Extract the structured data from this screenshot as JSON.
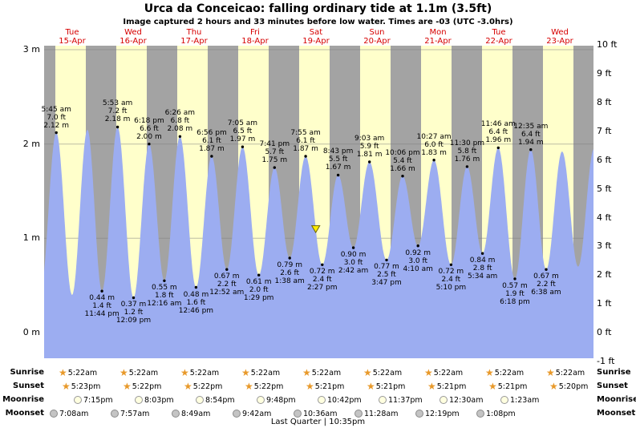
{
  "header": {
    "title": "Urca da Conceicao: falling ordinary tide at 1.1m (3.5ft)",
    "subtitle": "Image captured 2 hours and 33 minutes before low water. Times are -03 (UTC -3.0hrs)"
  },
  "chart_data": {
    "type": "area",
    "title": "Urca da Conceicao tide curve",
    "x_unit": "hours from Tue 15-Apr 00:00",
    "y_unit": "meters",
    "ylim_m": [
      -0.27,
      3.04
    ],
    "grid": "horizontal meter lines",
    "colors": {
      "daylight": "#ffffcb",
      "night": "#a3a3a3",
      "tide": "#9cadf1",
      "day_label": "#d60000",
      "marker": "#ffec00"
    },
    "sunrise_hour": 5.37,
    "sunset_hour": 17.37,
    "days": [
      {
        "dow": "Tue",
        "date": "15-Apr"
      },
      {
        "dow": "Wed",
        "date": "16-Apr"
      },
      {
        "dow": "Thu",
        "date": "17-Apr"
      },
      {
        "dow": "Fri",
        "date": "18-Apr"
      },
      {
        "dow": "Sat",
        "date": "19-Apr"
      },
      {
        "dow": "Sun",
        "date": "20-Apr"
      },
      {
        "dow": "Mon",
        "date": "21-Apr"
      },
      {
        "dow": "Tue",
        "date": "22-Apr"
      },
      {
        "dow": "Wed",
        "date": "23-Apr"
      }
    ],
    "y_left_ticks": [
      {
        "label": "3 m",
        "m": 3
      },
      {
        "label": "2 m",
        "m": 2
      },
      {
        "label": "1 m",
        "m": 1
      },
      {
        "label": "0 m",
        "m": 0
      }
    ],
    "y_right_ticks": [
      {
        "label": "10 ft",
        "ft": 10
      },
      {
        "label": "9 ft",
        "ft": 9
      },
      {
        "label": "8 ft",
        "ft": 8
      },
      {
        "label": "7 ft",
        "ft": 7
      },
      {
        "label": "6 ft",
        "ft": 6
      },
      {
        "label": "5 ft",
        "ft": 5
      },
      {
        "label": "4 ft",
        "ft": 4
      },
      {
        "label": "3 ft",
        "ft": 3
      },
      {
        "label": "2 ft",
        "ft": 2
      },
      {
        "label": "1 ft",
        "ft": 1
      },
      {
        "label": "0 ft",
        "ft": 0
      },
      {
        "label": "-1 ft",
        "ft": -1
      }
    ],
    "events": [
      {
        "t": -0.55,
        "h": 0.42,
        "type": "low"
      },
      {
        "t": 5.75,
        "h": 2.12,
        "type": "high",
        "lines": [
          "5:45 am",
          "7.0 ft",
          "2.12 m"
        ]
      },
      {
        "t": 11.95,
        "h": 0.4,
        "type": "low"
      },
      {
        "t": 18.0,
        "h": 2.15,
        "type": "high"
      },
      {
        "t": 23.73,
        "h": 0.44,
        "type": "low",
        "lines": [
          "0.44 m",
          "1.4 ft",
          "11:44 pm"
        ]
      },
      {
        "t": 29.88,
        "h": 2.18,
        "type": "high",
        "lines": [
          "5:53 am",
          "7.2 ft",
          "2.18 m"
        ]
      },
      {
        "t": 36.15,
        "h": 0.37,
        "type": "low",
        "lines": [
          "0.37 m",
          "1.2 ft",
          "12:09 pm"
        ]
      },
      {
        "t": 42.3,
        "h": 2.0,
        "type": "high",
        "lines": [
          "6:18 pm",
          "6.6 ft",
          "2.00 m"
        ]
      },
      {
        "t": 48.27,
        "h": 0.55,
        "type": "low",
        "lines": [
          "0.55 m",
          "1.8 ft",
          "12:16 am"
        ]
      },
      {
        "t": 54.43,
        "h": 2.08,
        "type": "high",
        "lines": [
          "6:26 am",
          "6.8 ft",
          "2.08 m"
        ]
      },
      {
        "t": 60.77,
        "h": 0.48,
        "type": "low",
        "lines": [
          "0.48 m",
          "1.6 ft",
          "12:46 pm"
        ]
      },
      {
        "t": 66.93,
        "h": 1.87,
        "type": "high",
        "lines": [
          "6:56 pm",
          "6.1 ft",
          "1.87 m"
        ]
      },
      {
        "t": 72.87,
        "h": 0.67,
        "type": "low",
        "lines": [
          "0.67 m",
          "2.2 ft",
          "12:52 am"
        ]
      },
      {
        "t": 79.08,
        "h": 1.97,
        "type": "high",
        "lines": [
          "7:05 am",
          "6.5 ft",
          "1.97 m"
        ]
      },
      {
        "t": 85.48,
        "h": 0.61,
        "type": "low",
        "lines": [
          "0.61 m",
          "2.0 ft",
          "1:29 pm"
        ]
      },
      {
        "t": 91.68,
        "h": 1.75,
        "type": "high",
        "lines": [
          "7:41 pm",
          "5.7 ft",
          "1.75 m"
        ]
      },
      {
        "t": 97.63,
        "h": 0.79,
        "type": "low",
        "lines": [
          "0.79 m",
          "2.6 ft",
          "1:38 am"
        ]
      },
      {
        "t": 103.92,
        "h": 1.87,
        "type": "high",
        "lines": [
          "7:55 am",
          "6.1 ft",
          "1.87 m"
        ]
      },
      {
        "t": 110.45,
        "h": 0.72,
        "type": "low",
        "lines": [
          "0.72 m",
          "2.4 ft",
          "2:27 pm"
        ]
      },
      {
        "t": 116.72,
        "h": 1.67,
        "type": "high",
        "lines": [
          "8:43 pm",
          "5.5 ft",
          "1.67 m"
        ]
      },
      {
        "t": 122.7,
        "h": 0.9,
        "type": "low",
        "lines": [
          "0.90 m",
          "3.0 ft",
          "2:42 am"
        ]
      },
      {
        "t": 129.05,
        "h": 1.81,
        "type": "high",
        "lines": [
          "9:03 am",
          "5.9 ft",
          "1.81 m"
        ]
      },
      {
        "t": 135.78,
        "h": 0.77,
        "type": "low",
        "lines": [
          "0.77 m",
          "2.5 ft",
          "3:47 pm"
        ]
      },
      {
        "t": 142.1,
        "h": 1.66,
        "type": "high",
        "lines": [
          "10:06 pm",
          "5.4 ft",
          "1.66 m"
        ]
      },
      {
        "t": 148.17,
        "h": 0.92,
        "type": "low",
        "lines": [
          "0.92 m",
          "3.0 ft",
          "4:10 am"
        ]
      },
      {
        "t": 154.45,
        "h": 1.83,
        "type": "high",
        "lines": [
          "10:27 am",
          "6.0 ft",
          "1.83 m"
        ]
      },
      {
        "t": 161.17,
        "h": 0.72,
        "type": "low",
        "lines": [
          "0.72 m",
          "2.4 ft",
          "5:10 pm"
        ]
      },
      {
        "t": 167.5,
        "h": 1.76,
        "type": "high",
        "lines": [
          "11:30 pm",
          "5.8 ft",
          "1.76 m"
        ]
      },
      {
        "t": 173.57,
        "h": 0.84,
        "type": "low",
        "lines": [
          "0.84 m",
          "2.8 ft",
          "5:34 am"
        ]
      },
      {
        "t": 179.77,
        "h": 1.96,
        "type": "high",
        "lines": [
          "11:46 am",
          "6.4 ft",
          "1.96 m"
        ]
      },
      {
        "t": 186.3,
        "h": 0.57,
        "type": "low",
        "lines": [
          "0.57 m",
          "1.9 ft",
          "6:18 pm"
        ]
      },
      {
        "t": 192.58,
        "h": 1.94,
        "type": "high",
        "lines": [
          "12:35 am",
          "6.4 ft",
          "1.94 m"
        ]
      },
      {
        "t": 198.63,
        "h": 0.67,
        "type": "low",
        "lines": [
          "0.67 m",
          "2.2 ft",
          "6:38 am"
        ]
      },
      {
        "t": 204.9,
        "h": 1.92,
        "type": "high"
      },
      {
        "t": 211.2,
        "h": 0.7,
        "type": "low"
      },
      {
        "t": 217.5,
        "h": 1.95,
        "type": "high"
      }
    ],
    "marker": {
      "t": 107.9,
      "h": 1.1,
      "meaning": "current tide level 1.1m falling"
    }
  },
  "almanac": {
    "rows": [
      {
        "label": "Sunrise",
        "icon": "star",
        "times": [
          "5:22am",
          "5:22am",
          "5:22am",
          "5:22am",
          "5:22am",
          "5:22am",
          "5:22am",
          "5:22am",
          "5:22am"
        ]
      },
      {
        "label": "Sunset",
        "icon": "star",
        "times": [
          "5:23pm",
          "5:22pm",
          "5:22pm",
          "5:22pm",
          "5:21pm",
          "5:21pm",
          "5:21pm",
          "5:21pm",
          "5:20pm"
        ]
      },
      {
        "label": "Moonrise",
        "icon": "moon-light",
        "times": [
          "7:15pm",
          "8:03pm",
          "8:54pm",
          "9:48pm",
          "10:42pm",
          "11:37pm",
          "12:30am",
          "1:23am"
        ]
      },
      {
        "label": "Moonset",
        "icon": "moon-dark",
        "times": [
          "7:08am",
          "7:57am",
          "8:49am",
          "9:42am",
          "10:36am",
          "11:28am",
          "12:19pm",
          "1:08pm"
        ]
      }
    ],
    "footer": "Last Quarter | 10:35pm"
  }
}
